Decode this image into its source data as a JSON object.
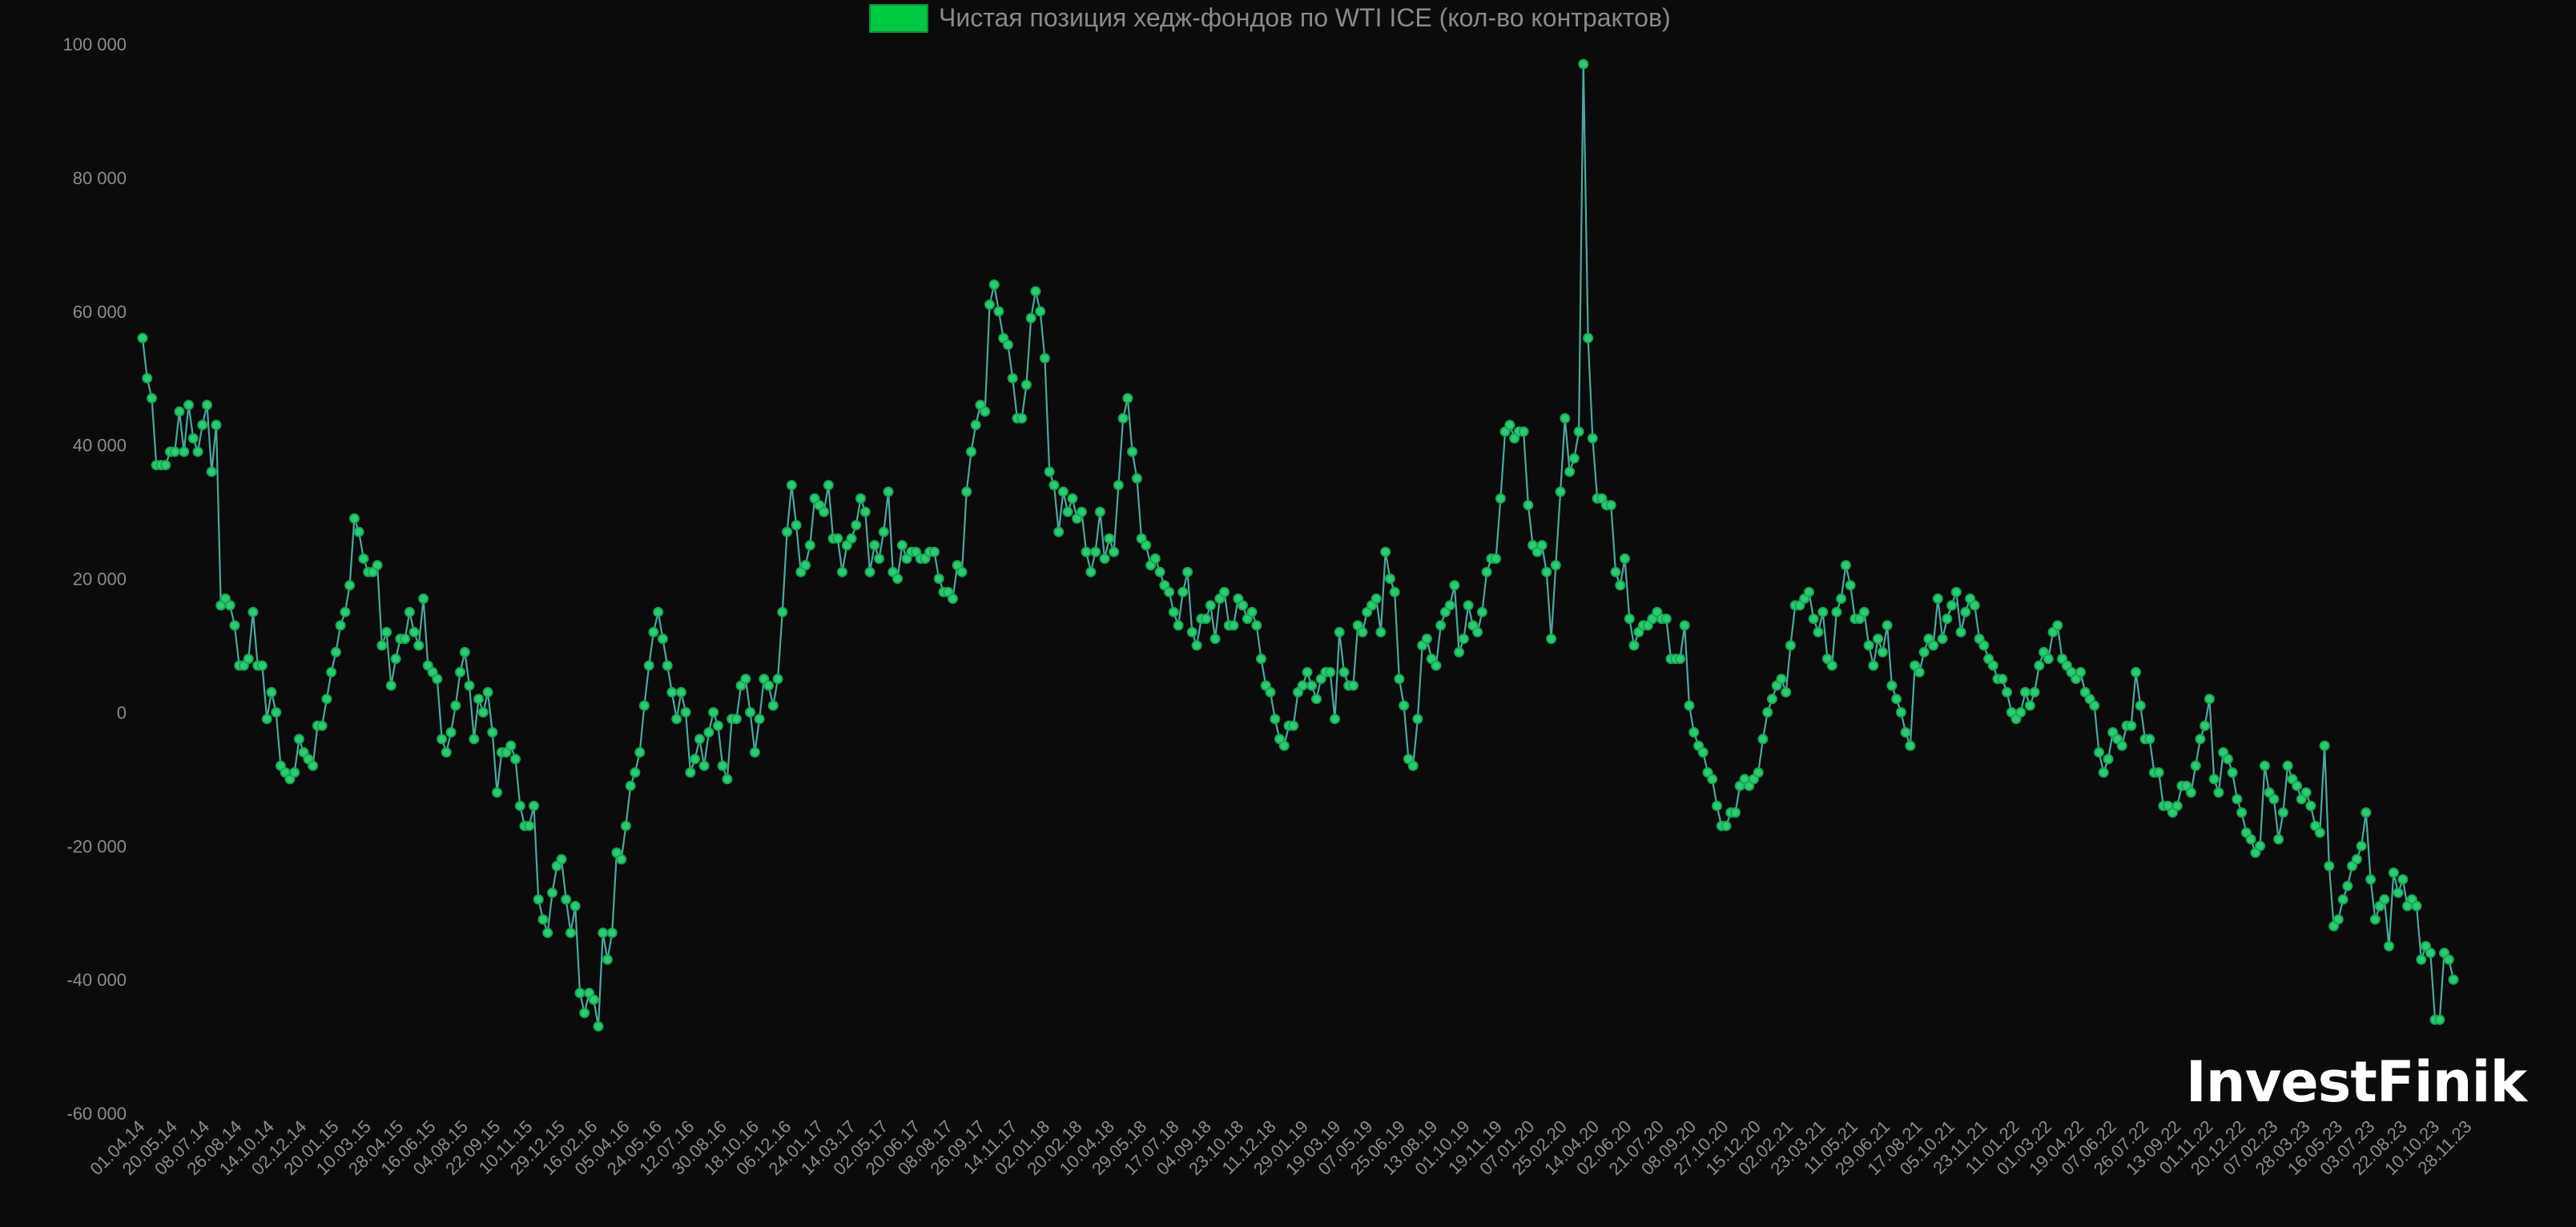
{
  "legend": {
    "label": "Чистая позиция хедж-фондов по WTI ICE (кол-во контрактов)"
  },
  "brand": {
    "name": "InvestFinik"
  },
  "colors": {
    "background": "#0b0b0b",
    "line": "#4fa6a0",
    "points": "#2ecc71",
    "legend": "#00c842"
  },
  "chart_data": {
    "type": "line",
    "title": "",
    "xlabel": "",
    "ylabel": "",
    "ylim": [
      -60000,
      100000
    ],
    "yticks": [
      100000,
      80000,
      60000,
      40000,
      20000,
      0,
      -20000,
      -40000,
      -60000
    ],
    "ytick_labels": [
      "100 000",
      "80 000",
      "60 000",
      "40 000",
      "20 000",
      "0",
      "-20 000",
      "-40 000",
      "-60 000"
    ],
    "x_tick_labels": [
      "01.04.14",
      "20.05.14",
      "08.07.14",
      "26.08.14",
      "14.10.14",
      "02.12.14",
      "20.01.15",
      "10.03.15",
      "28.04.15",
      "16.06.15",
      "04.08.15",
      "22.09.15",
      "10.11.15",
      "29.12.15",
      "16.02.16",
      "05.04.16",
      "24.05.16",
      "12.07.16",
      "30.08.16",
      "18.10.16",
      "06.12.16",
      "24.01.17",
      "14.03.17",
      "02.05.17",
      "20.06.17",
      "08.08.17",
      "26.09.17",
      "14.11.17",
      "02.01.18",
      "20.02.18",
      "10.04.18",
      "29.05.18",
      "17.07.18",
      "04.09.18",
      "23.10.18",
      "11.12.18",
      "29.01.19",
      "19.03.19",
      "07.05.19",
      "25.06.19",
      "13.08.19",
      "01.10.19",
      "19.11.19",
      "07.01.20",
      "25.02.20",
      "14.04.20",
      "02.06.20",
      "21.07.20",
      "08.09.20",
      "27.10.20",
      "15.12.20",
      "02.02.21",
      "23.03.21",
      "11.05.21",
      "29.06.21",
      "17.08.21",
      "05.10.21",
      "23.11.21",
      "11.01.22",
      "01.03.22",
      "19.04.22",
      "07.06.22",
      "26.07.22",
      "13.09.22",
      "01.11.22",
      "20.12.22",
      "07.02.23",
      "28.03.23",
      "16.05.23",
      "03.07.23",
      "22.08.23",
      "10.10.23",
      "28.11.23"
    ],
    "legend_position": "top-center",
    "grid": false,
    "series": [
      {
        "name": "Чистая позиция хедж-фондов по WTI ICE (кол-во контрактов)",
        "values": [
          56000,
          50000,
          47000,
          37000,
          37000,
          37000,
          39000,
          39000,
          45000,
          39000,
          46000,
          41000,
          39000,
          43000,
          46000,
          36000,
          43000,
          16000,
          17000,
          16000,
          13000,
          7000,
          7000,
          8000,
          15000,
          7000,
          7000,
          -1000,
          3000,
          0,
          -8000,
          -9000,
          -10000,
          -9000,
          -4000,
          -6000,
          -7000,
          -8000,
          -2000,
          -2000,
          2000,
          6000,
          9000,
          13000,
          15000,
          19000,
          29000,
          27000,
          23000,
          21000,
          21000,
          22000,
          10000,
          12000,
          4000,
          8000,
          11000,
          11000,
          15000,
          12000,
          10000,
          17000,
          7000,
          6000,
          5000,
          -4000,
          -6000,
          -3000,
          1000,
          6000,
          9000,
          4000,
          -4000,
          2000,
          0,
          3000,
          -3000,
          -12000,
          -6000,
          -6000,
          -5000,
          -7000,
          -14000,
          -17000,
          -17000,
          -14000,
          -28000,
          -31000,
          -33000,
          -27000,
          -23000,
          -22000,
          -28000,
          -33000,
          -29000,
          -42000,
          -45000,
          -42000,
          -43000,
          -47000,
          -33000,
          -37000,
          -33000,
          -21000,
          -22000,
          -17000,
          -11000,
          -9000,
          -6000,
          1000,
          7000,
          12000,
          15000,
          11000,
          7000,
          3000,
          -1000,
          3000,
          0,
          -9000,
          -7000,
          -4000,
          -8000,
          -3000,
          0,
          -2000,
          -8000,
          -10000,
          -1000,
          -1000,
          4000,
          5000,
          0,
          -6000,
          -1000,
          5000,
          4000,
          1000,
          5000,
          15000,
          27000,
          34000,
          28000,
          21000,
          22000,
          25000,
          32000,
          31000,
          30000,
          34000,
          26000,
          26000,
          21000,
          25000,
          26000,
          28000,
          32000,
          30000,
          21000,
          25000,
          23000,
          27000,
          33000,
          21000,
          20000,
          25000,
          23000,
          24000,
          24000,
          23000,
          23000,
          24000,
          24000,
          20000,
          18000,
          18000,
          17000,
          22000,
          21000,
          33000,
          39000,
          43000,
          46000,
          45000,
          61000,
          64000,
          60000,
          56000,
          55000,
          50000,
          44000,
          44000,
          49000,
          59000,
          63000,
          60000,
          53000,
          36000,
          34000,
          27000,
          33000,
          30000,
          32000,
          29000,
          30000,
          24000,
          21000,
          24000,
          30000,
          23000,
          26000,
          24000,
          34000,
          44000,
          47000,
          39000,
          35000,
          26000,
          25000,
          22000,
          23000,
          21000,
          19000,
          18000,
          15000,
          13000,
          18000,
          21000,
          12000,
          10000,
          14000,
          14000,
          16000,
          11000,
          17000,
          18000,
          13000,
          13000,
          17000,
          16000,
          14000,
          15000,
          13000,
          8000,
          4000,
          3000,
          -1000,
          -4000,
          -5000,
          -2000,
          -2000,
          3000,
          4000,
          6000,
          4000,
          2000,
          5000,
          6000,
          6000,
          -1000,
          12000,
          6000,
          4000,
          4000,
          13000,
          12000,
          15000,
          16000,
          17000,
          12000,
          24000,
          20000,
          18000,
          5000,
          1000,
          -7000,
          -8000,
          -1000,
          10000,
          11000,
          8000,
          7000,
          13000,
          15000,
          16000,
          19000,
          9000,
          11000,
          16000,
          13000,
          12000,
          15000,
          21000,
          23000,
          23000,
          32000,
          42000,
          43000,
          41000,
          42000,
          42000,
          31000,
          25000,
          24000,
          25000,
          21000,
          11000,
          22000,
          33000,
          44000,
          36000,
          38000,
          42000,
          97000,
          56000,
          41000,
          32000,
          32000,
          31000,
          31000,
          21000,
          19000,
          23000,
          14000,
          10000,
          12000,
          13000,
          13000,
          14000,
          15000,
          14000,
          14000,
          8000,
          8000,
          8000,
          13000,
          1000,
          -3000,
          -5000,
          -6000,
          -9000,
          -10000,
          -14000,
          -17000,
          -17000,
          -15000,
          -15000,
          -11000,
          -10000,
          -11000,
          -10000,
          -9000,
          -4000,
          0,
          2000,
          4000,
          5000,
          3000,
          10000,
          16000,
          16000,
          17000,
          18000,
          14000,
          12000,
          15000,
          8000,
          7000,
          15000,
          17000,
          22000,
          19000,
          14000,
          14000,
          15000,
          10000,
          7000,
          11000,
          9000,
          13000,
          4000,
          2000,
          0,
          -3000,
          -5000,
          7000,
          6000,
          9000,
          11000,
          10000,
          17000,
          11000,
          14000,
          16000,
          18000,
          12000,
          15000,
          17000,
          16000,
          11000,
          10000,
          8000,
          7000,
          5000,
          5000,
          3000,
          0,
          -1000,
          0,
          3000,
          1000,
          3000,
          7000,
          9000,
          8000,
          12000,
          13000,
          8000,
          7000,
          6000,
          5000,
          6000,
          3000,
          2000,
          1000,
          -6000,
          -9000,
          -7000,
          -3000,
          -4000,
          -5000,
          -2000,
          -2000,
          6000,
          1000,
          -4000,
          -4000,
          -9000,
          -9000,
          -14000,
          -14000,
          -15000,
          -14000,
          -11000,
          -11000,
          -12000,
          -8000,
          -4000,
          -2000,
          2000,
          -10000,
          -12000,
          -6000,
          -7000,
          -9000,
          -13000,
          -15000,
          -18000,
          -19000,
          -21000,
          -20000,
          -8000,
          -12000,
          -13000,
          -19000,
          -15000,
          -8000,
          -10000,
          -11000,
          -13000,
          -12000,
          -14000,
          -17000,
          -18000,
          -5000,
          -23000,
          -32000,
          -31000,
          -28000,
          -26000,
          -23000,
          -22000,
          -20000,
          -15000,
          -25000,
          -31000,
          -29000,
          -28000,
          -35000,
          -24000,
          -27000,
          -25000,
          -29000,
          -28000,
          -29000,
          -37000,
          -35000,
          -36000,
          -46000,
          -46000,
          -36000,
          -37000,
          -40000
        ]
      }
    ]
  }
}
